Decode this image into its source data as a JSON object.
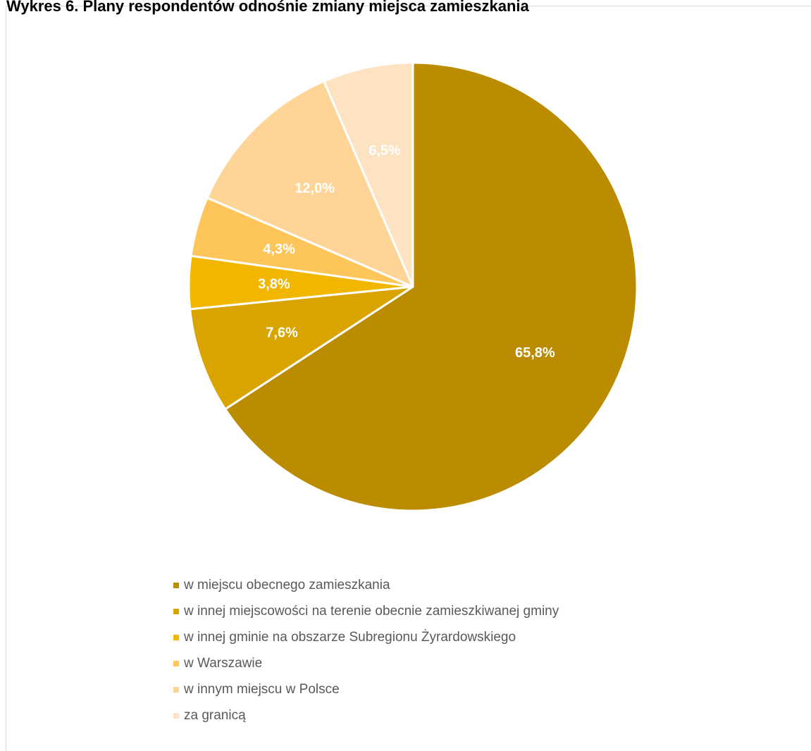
{
  "chart_data": {
    "type": "pie",
    "title": "Wykres 6. Plany respondentów odnośnie zmiany miejsca zamieszkania",
    "categories": [
      "w miejscu obecnego zamieszkania",
      "w innej miejscowości na terenie obecnie zamieszkiwanej gminy",
      "w innej gminie na obszarze Subregionu Żyrardowskiego",
      "w Warszawie",
      "w innym miejscu w Polsce",
      "za granicą"
    ],
    "values": [
      65.8,
      7.6,
      3.8,
      4.3,
      12.0,
      6.5
    ],
    "data_labels": [
      "65,8%",
      "7,6%",
      "3,8%",
      "4,3%",
      "12,0%",
      "6,5%"
    ],
    "colors": [
      "#bb8c00",
      "#d9a300",
      "#f0b600",
      "#fec65a",
      "#fed597",
      "#fde3c1"
    ],
    "legend_position": "bottom",
    "start_angle": "12 o'clock",
    "direction": "clockwise"
  }
}
